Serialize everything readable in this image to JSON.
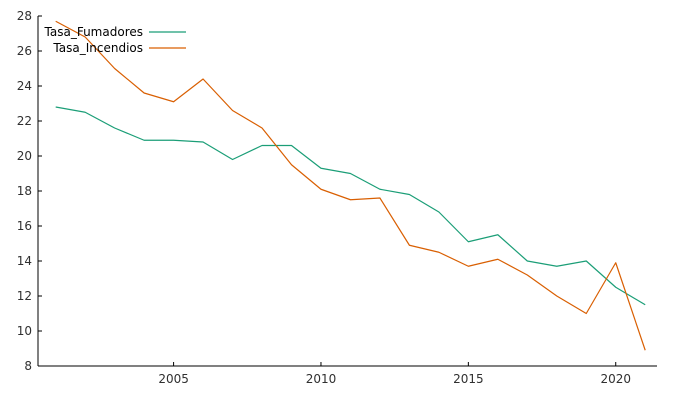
{
  "chart_data": {
    "type": "line",
    "title": "",
    "xlabel": "",
    "ylabel": "",
    "x": [
      2001,
      2002,
      2003,
      2004,
      2005,
      2006,
      2007,
      2008,
      2009,
      2010,
      2011,
      2012,
      2013,
      2014,
      2015,
      2016,
      2017,
      2018,
      2019,
      2020,
      2021
    ],
    "series": [
      {
        "name": "Tasa_Fumadores",
        "color": "#1b9e77",
        "values": [
          22.8,
          22.5,
          21.6,
          20.9,
          20.9,
          20.8,
          19.8,
          20.6,
          20.6,
          19.3,
          19.0,
          18.1,
          17.8,
          16.8,
          15.1,
          15.5,
          14.0,
          13.7,
          14.0,
          12.5,
          11.5
        ]
      },
      {
        "name": "Tasa_Incendios",
        "color": "#d95f02",
        "values": [
          27.7,
          26.8,
          25.0,
          23.6,
          23.1,
          24.4,
          22.6,
          21.6,
          19.5,
          18.1,
          17.5,
          17.6,
          14.9,
          14.5,
          13.7,
          14.1,
          13.2,
          12.0,
          11.0,
          13.9,
          8.9
        ]
      }
    ],
    "xticks": [
      "2005",
      "2010",
      "2015",
      "2020"
    ],
    "yticks": [
      "8",
      "10",
      "12",
      "14",
      "16",
      "18",
      "20",
      "22",
      "24",
      "26",
      "28"
    ],
    "xlim": [
      2000.4,
      2021.4
    ],
    "ylim": [
      8,
      28
    ],
    "grid": false,
    "legend": "top-left"
  }
}
